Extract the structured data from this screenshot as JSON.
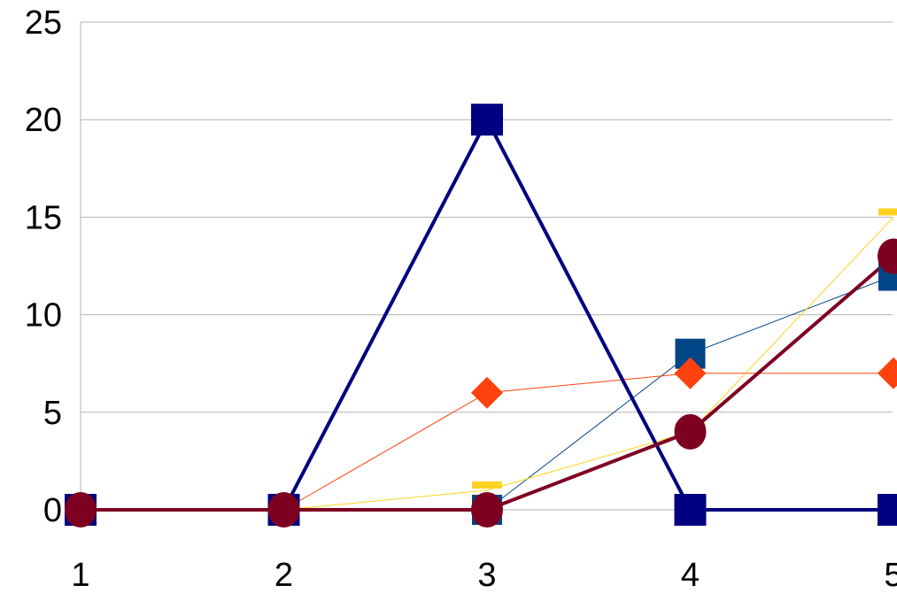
{
  "chart_data": {
    "type": "line",
    "title": "",
    "xlabel": "",
    "ylabel": "",
    "categories": [
      "1",
      "2",
      "3",
      "4",
      "5"
    ],
    "ylim": [
      0,
      25
    ],
    "yticks": [
      "0",
      "5",
      "10",
      "15",
      "20",
      "25"
    ],
    "grid": "horizontal",
    "legend": "none",
    "series": [
      {
        "color": "#004586",
        "marker": "square",
        "line": "thin",
        "values": [
          0,
          0,
          0,
          8,
          12
        ]
      },
      {
        "color": "#FF420E",
        "marker": "diamond",
        "line": "thin",
        "values": [
          0,
          0,
          6,
          7,
          7
        ]
      },
      {
        "color": "#FFD320",
        "marker": "bar",
        "line": "thin",
        "values": [
          0,
          0,
          1,
          4,
          15
        ]
      },
      {
        "color": "#000080",
        "marker": "square",
        "line": "thick",
        "values": [
          0,
          0,
          20,
          0,
          0
        ]
      },
      {
        "color": "#7E0021",
        "marker": "circle",
        "line": "thick",
        "values": [
          0,
          0,
          0,
          4,
          13
        ]
      }
    ]
  }
}
